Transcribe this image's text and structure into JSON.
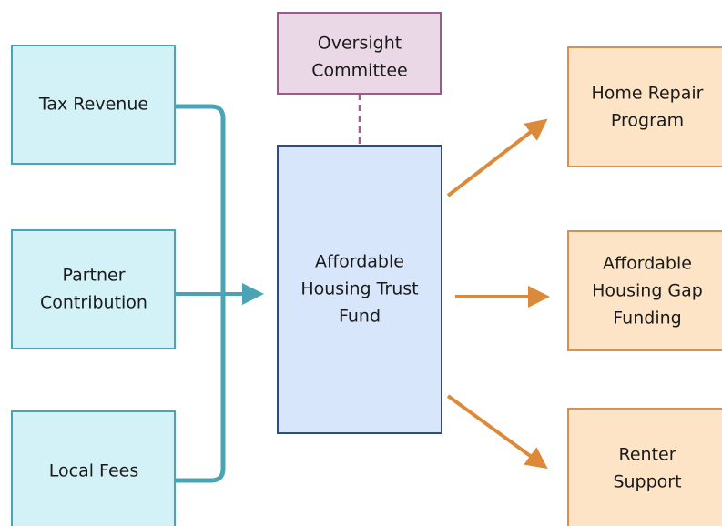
{
  "nodes": [
    {
      "lines": [
        "Tax Revenue"
      ]
    },
    {
      "lines": [
        "Partner",
        "Contribution"
      ]
    },
    {
      "lines": [
        "Local Fees"
      ]
    },
    {
      "lines": [
        "Oversight",
        "Committee"
      ]
    },
    {
      "lines": [
        "Affordable",
        "Housing Trust",
        "Fund"
      ]
    },
    {
      "lines": [
        "Home Repair",
        "Program"
      ]
    },
    {
      "lines": [
        "Affordable",
        "Housing Gap",
        "Funding"
      ]
    },
    {
      "lines": [
        "Renter",
        "Support"
      ]
    }
  ]
}
